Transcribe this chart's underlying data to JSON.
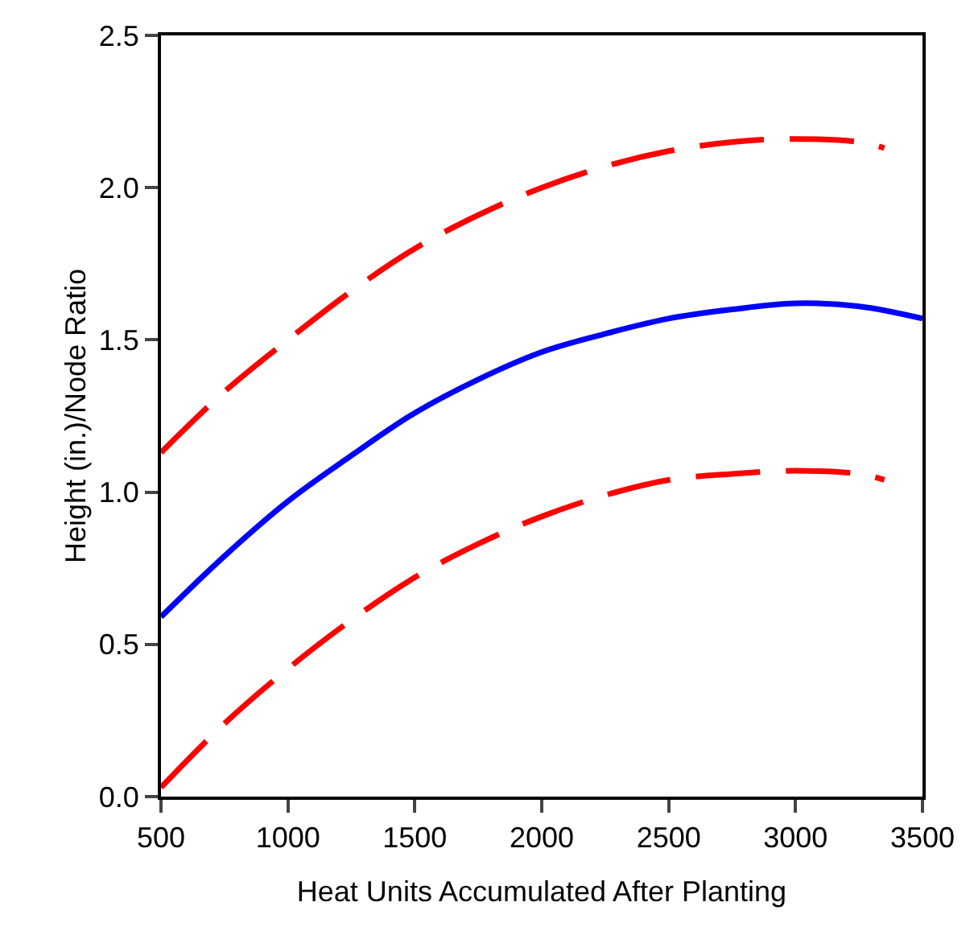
{
  "chart_data": {
    "type": "line",
    "xlabel": "Heat Units Accumulated After Planting",
    "ylabel": "Height (in.)/Node Ratio",
    "xlim": [
      500,
      3500
    ],
    "xticks": [
      500,
      1000,
      1500,
      2000,
      2500,
      3000,
      3500
    ],
    "ylim": [
      0,
      2.5
    ],
    "yticks": [
      {
        "value": 0,
        "label": "0.0"
      },
      {
        "value": 0.5,
        "label": "0.5"
      },
      {
        "value": 1,
        "label": "1.0"
      },
      {
        "value": 1.5,
        "label": "1.5"
      },
      {
        "value": 2,
        "label": "2.0"
      },
      {
        "value": 2.5,
        "label": "2.5"
      }
    ],
    "grid": false,
    "marker": "none",
    "series": [
      {
        "color": "#ff0000",
        "line_style": "dashed",
        "x": [
          500,
          750,
          1000,
          1250,
          1500,
          1750,
          2000,
          2250,
          2500,
          2750,
          3000,
          3250,
          3350
        ],
        "values": [
          1.13,
          1.33,
          1.5,
          1.66,
          1.8,
          1.91,
          2.0,
          2.07,
          2.12,
          2.15,
          2.16,
          2.15,
          2.13
        ]
      },
      {
        "color": "#0000ff",
        "line_style": "solid",
        "x": [
          500,
          750,
          1000,
          1250,
          1500,
          1750,
          2000,
          2250,
          2500,
          2750,
          3000,
          3250,
          3500
        ],
        "values": [
          0.59,
          0.79,
          0.97,
          1.12,
          1.26,
          1.37,
          1.46,
          1.52,
          1.57,
          1.6,
          1.62,
          1.61,
          1.57
        ]
      },
      {
        "color": "#ff0000",
        "line_style": "dashed",
        "x": [
          500,
          750,
          1000,
          1250,
          1500,
          1750,
          2000,
          2250,
          2500,
          2750,
          3000,
          3250,
          3350
        ],
        "values": [
          0.03,
          0.24,
          0.42,
          0.58,
          0.72,
          0.83,
          0.92,
          0.99,
          1.04,
          1.06,
          1.07,
          1.06,
          1.04
        ]
      }
    ]
  }
}
